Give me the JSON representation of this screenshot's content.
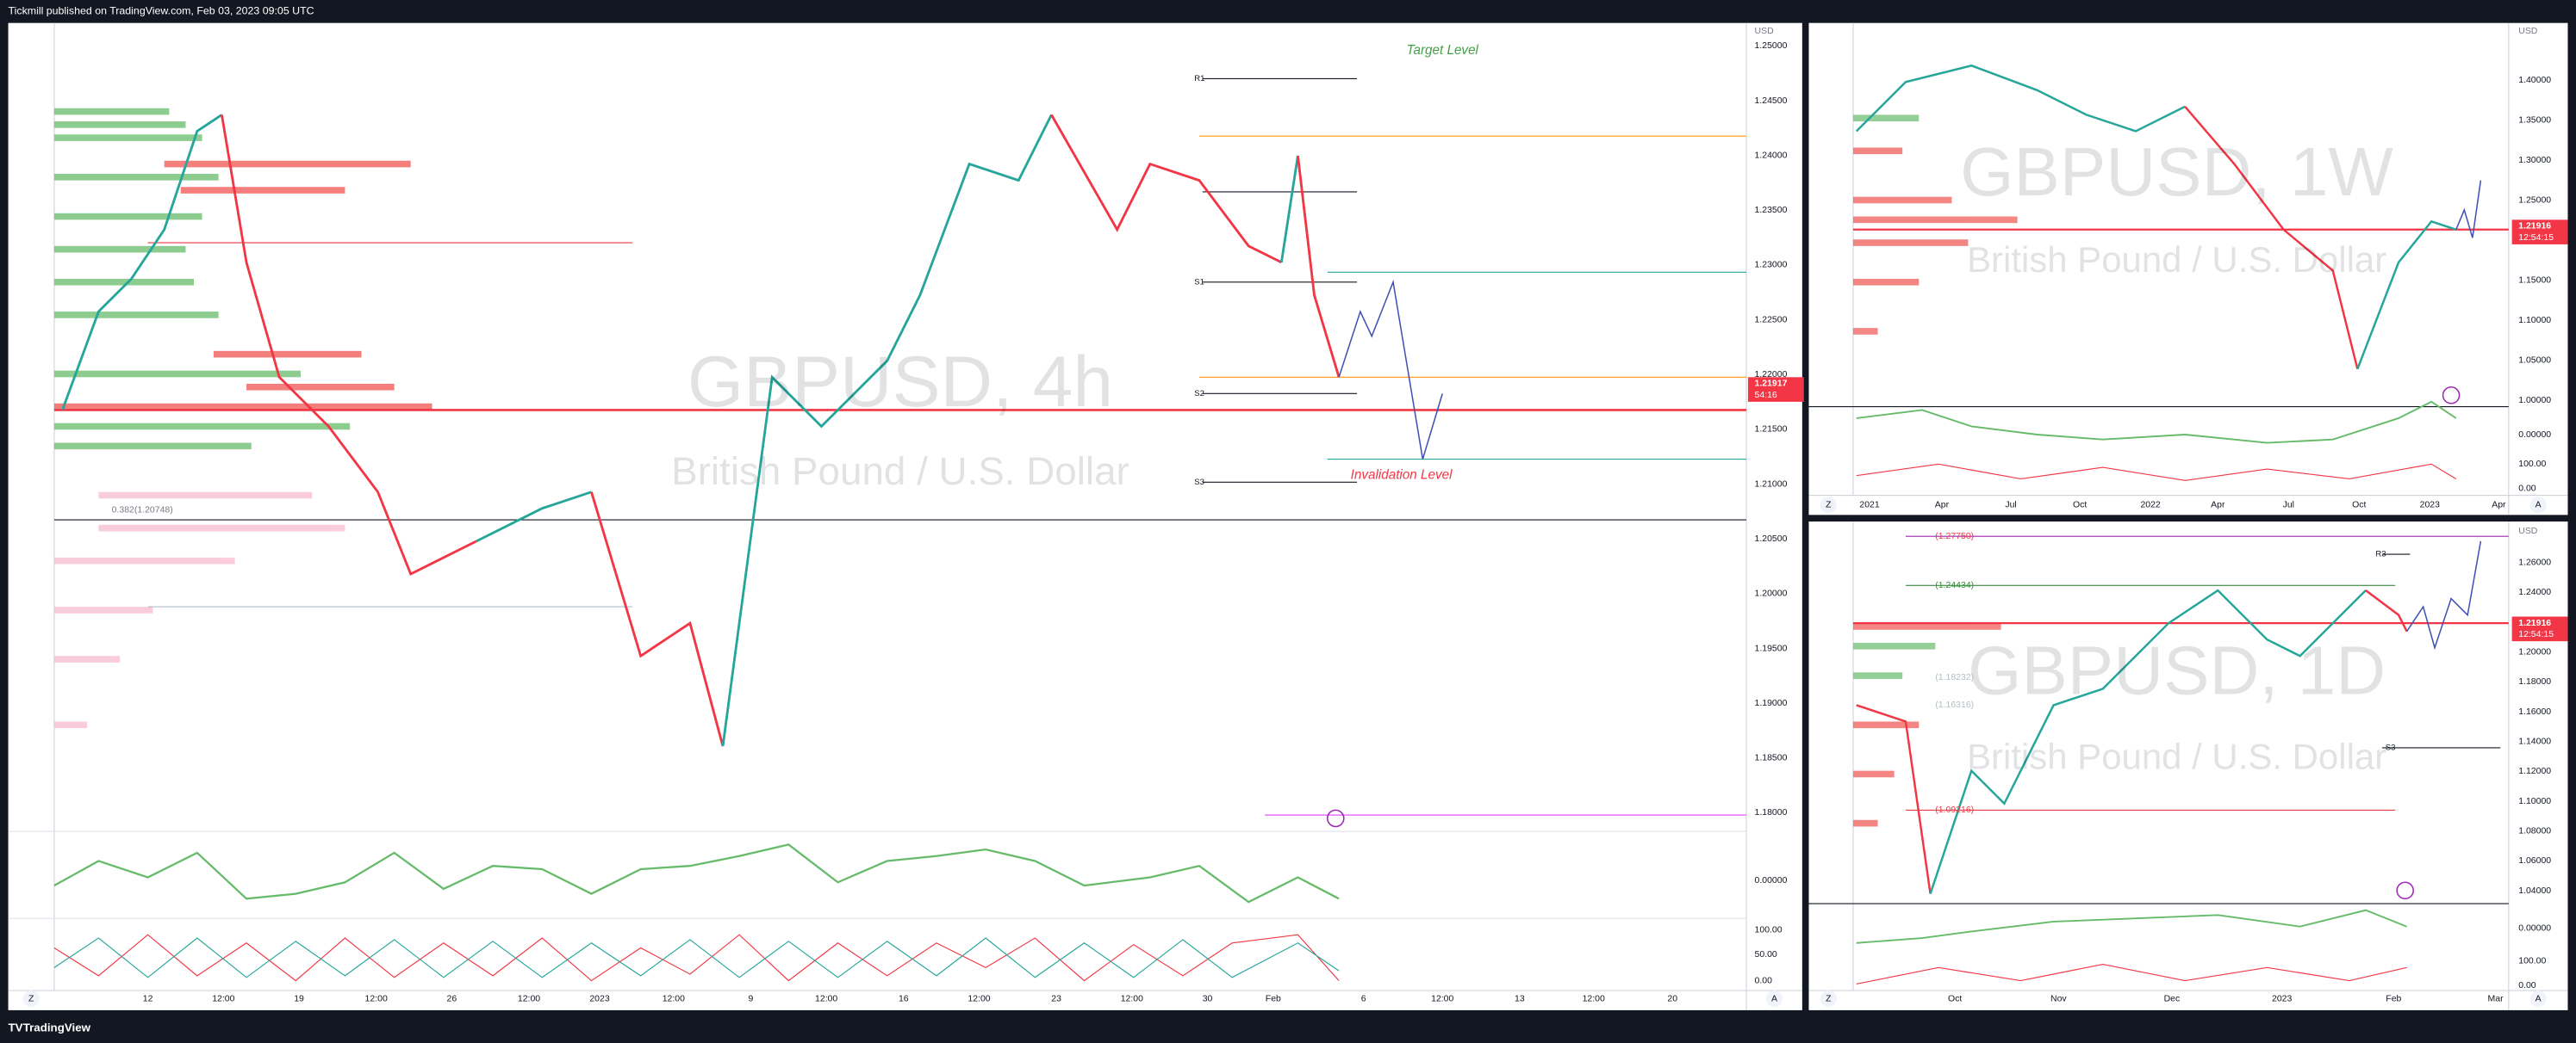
{
  "header": {
    "text": "Tickmill published on TradingView.com, Feb 03, 2023 09:05 UTC"
  },
  "panels": [
    {
      "symbol": "GBPUSD, 4h",
      "description": "British Pound / U.S. Dollar",
      "currency": "USD",
      "price_ticks": [
        "1.25000",
        "1.24500",
        "1.24000",
        "1.23500",
        "1.23000",
        "1.22500",
        "1.22000",
        "1.21500",
        "1.21000",
        "1.20500",
        "1.20000",
        "1.19500",
        "1.19000",
        "1.18500",
        "1.18000"
      ],
      "oscillator_ticks": [
        "0.00000",
        "100.00",
        "50.00",
        "0.00"
      ],
      "time_labels": [
        "12",
        "12:00",
        "19",
        "12:00",
        "26",
        "12:00",
        "2023",
        "12:00",
        "9",
        "12:00",
        "16",
        "12:00",
        "23",
        "12:00",
        "30",
        "Feb",
        "6",
        "12:00",
        "13",
        "12:00",
        "20"
      ],
      "price_badge": "1.21917",
      "countdown": "54:16",
      "annotations": [
        "Target Level",
        "Invalidation Level",
        "R1",
        "S1",
        "S2",
        "S3",
        "0.382(1.20748)"
      ],
      "corner_buttons": [
        "Z",
        "A"
      ]
    },
    {
      "symbol": "GBPUSD, 1W",
      "description": "British Pound / U.S. Dollar",
      "currency": "USD",
      "price_ticks": [
        "1.40000",
        "1.35000",
        "1.30000",
        "1.25000",
        "1.20000",
        "1.15000",
        "1.10000",
        "1.05000",
        "1.00000"
      ],
      "oscillator_ticks": [
        "0.00000",
        "100.00",
        "0.00"
      ],
      "time_labels": [
        "2021",
        "Apr",
        "Jul",
        "Oct",
        "2022",
        "Apr",
        "Jul",
        "Oct",
        "2023",
        "Apr"
      ],
      "price_badge": "1.21916",
      "countdown": "12:54:15",
      "annotations": [],
      "corner_buttons": [
        "Z",
        "A"
      ]
    },
    {
      "symbol": "GBPUSD, 1D",
      "description": "British Pound / U.S. Dollar",
      "currency": "USD",
      "price_ticks": [
        "1.26000",
        "1.24000",
        "1.22000",
        "1.20000",
        "1.18000",
        "1.16000",
        "1.14000",
        "1.12000",
        "1.10000",
        "1.08000",
        "1.06000",
        "1.04000"
      ],
      "oscillator_ticks": [
        "0.00000",
        "100.00",
        "0.00"
      ],
      "time_labels": [
        "Oct",
        "Nov",
        "Dec",
        "2023",
        "Feb",
        "Mar"
      ],
      "price_badge": "1.21916",
      "countdown": "12:54:15",
      "annotations": [
        "(1.27750)",
        "(1.24434)",
        "(1.18232)",
        "(1.16316)",
        "(1.09216)",
        "R3",
        "S3"
      ],
      "corner_buttons": [
        "Z",
        "A"
      ]
    }
  ],
  "footer": {
    "brand": "TradingView"
  }
}
